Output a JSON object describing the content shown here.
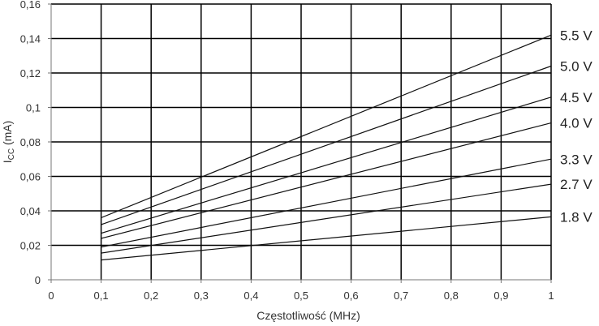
{
  "chart_data": {
    "type": "line",
    "xlabel": "Częstotliwość (MHz)",
    "ylabel": "ICC (mA)",
    "xlim": [
      0,
      1
    ],
    "ylim": [
      0,
      0.16
    ],
    "x_ticks": [
      "0",
      "0,1",
      "0,2",
      "0,3",
      "0,4",
      "0,5",
      "0,6",
      "0,7",
      "0,8",
      "0,9",
      "1"
    ],
    "y_ticks": [
      "0",
      "0,02",
      "0,04",
      "0,06",
      "0,08",
      "0,1",
      "0,12",
      "0,14",
      "0,16"
    ],
    "grid": true,
    "legend": "labels at right end of lines",
    "series": [
      {
        "name": "5.5 V",
        "x": [
          0.1,
          1
        ],
        "y": [
          0.036,
          0.142
        ]
      },
      {
        "name": "5.0 V",
        "x": [
          0.1,
          1
        ],
        "y": [
          0.032,
          0.124
        ]
      },
      {
        "name": "4.5 V",
        "x": [
          0.1,
          1
        ],
        "y": [
          0.027,
          0.106
        ]
      },
      {
        "name": "4.0 V",
        "x": [
          0.1,
          1
        ],
        "y": [
          0.024,
          0.091
        ]
      },
      {
        "name": "3.3 V",
        "x": [
          0.1,
          1
        ],
        "y": [
          0.019,
          0.07
        ]
      },
      {
        "name": "2.7 V",
        "x": [
          0.1,
          1
        ],
        "y": [
          0.0155,
          0.0555
        ]
      },
      {
        "name": "1.8 V",
        "x": [
          0.1,
          1
        ],
        "y": [
          0.0115,
          0.0365
        ]
      }
    ]
  }
}
